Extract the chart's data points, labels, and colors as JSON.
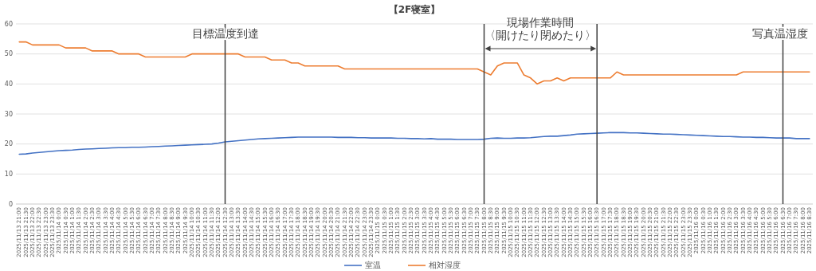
{
  "chart_data": {
    "type": "line",
    "title": "【2F寝室】",
    "categories": [
      "2025/11/13 21:00",
      "2025/11/13 21:30",
      "2025/11/13 22:00",
      "2025/11/13 22:30",
      "2025/11/13 23:00",
      "2025/11/13 23:30",
      "2025/11/14 0:00",
      "2025/11/14 0:30",
      "2025/11/14 1:00",
      "2025/11/14 1:30",
      "2025/11/14 2:00",
      "2025/11/14 2:30",
      "2025/11/14 3:00",
      "2025/11/14 3:30",
      "2025/11/14 4:00",
      "2025/11/14 4:30",
      "2025/11/14 5:00",
      "2025/11/14 5:30",
      "2025/11/14 6:00",
      "2025/11/14 6:30",
      "2025/11/14 7:00",
      "2025/11/14 7:30",
      "2025/11/14 8:00",
      "2025/11/14 8:30",
      "2025/11/14 9:00",
      "2025/11/14 9:30",
      "2025/11/14 10:00",
      "2025/11/14 10:30",
      "2025/11/14 11:00",
      "2025/11/14 11:30",
      "2025/11/14 12:00",
      "2025/11/14 12:30",
      "2025/11/14 13:00",
      "2025/11/14 13:30",
      "2025/11/14 14:00",
      "2025/11/14 14:30",
      "2025/11/14 15:00",
      "2025/11/14 15:30",
      "2025/11/14 16:00",
      "2025/11/14 16:30",
      "2025/11/14 17:00",
      "2025/11/14 17:30",
      "2025/11/14 18:00",
      "2025/11/14 18:30",
      "2025/11/14 19:00",
      "2025/11/14 19:30",
      "2025/11/14 20:00",
      "2025/11/14 20:30",
      "2025/11/14 21:00",
      "2025/11/14 21:30",
      "2025/11/14 22:00",
      "2025/11/14 22:30",
      "2025/11/14 23:00",
      "2025/11/14 23:30",
      "2025/11/15 0:00",
      "2025/11/15 0:30",
      "2025/11/15 1:00",
      "2025/11/15 1:30",
      "2025/11/15 2:00",
      "2025/11/15 2:30",
      "2025/11/15 3:00",
      "2025/11/15 3:30",
      "2025/11/15 4:00",
      "2025/11/15 4:30",
      "2025/11/15 5:00",
      "2025/11/15 5:30",
      "2025/11/15 6:00",
      "2025/11/15 6:30",
      "2025/11/15 7:00",
      "2025/11/15 7:30",
      "2025/11/15 8:00",
      "2025/11/15 8:30",
      "2025/11/15 9:00",
      "2025/11/15 9:30",
      "2025/11/15 10:00",
      "2025/11/15 10:30",
      "2025/11/15 11:00",
      "2025/11/15 11:30",
      "2025/11/15 12:00",
      "2025/11/15 12:30",
      "2025/11/15 13:00",
      "2025/11/15 13:30",
      "2025/11/15 14:00",
      "2025/11/15 14:30",
      "2025/11/15 15:00",
      "2025/11/15 15:30",
      "2025/11/15 16:00",
      "2025/11/15 16:30",
      "2025/11/15 17:00",
      "2025/11/15 17:30",
      "2025/11/15 18:00",
      "2025/11/15 18:30",
      "2025/11/15 19:00",
      "2025/11/15 19:30",
      "2025/11/15 20:00",
      "2025/11/15 20:30",
      "2025/11/15 21:00",
      "2025/11/15 21:30",
      "2025/11/15 22:00",
      "2025/11/15 22:30",
      "2025/11/15 23:00",
      "2025/11/15 23:30",
      "2025/11/16 0:00",
      "2025/11/16 0:30",
      "2025/11/16 1:00",
      "2025/11/16 1:30",
      "2025/11/16 2:00",
      "2025/11/16 2:30",
      "2025/11/16 3:00",
      "2025/11/16 3:30",
      "2025/11/16 4:00",
      "2025/11/16 4:30",
      "2025/11/16 5:00",
      "2025/11/16 5:30",
      "2025/11/16 6:00",
      "2025/11/16 6:30",
      "2025/11/16 7:00",
      "2025/11/16 7:30",
      "2025/11/16 8:00",
      "2025/11/16 8:30"
    ],
    "series": [
      {
        "name": "室温",
        "color": "#4472c4",
        "values": [
          16.6,
          16.7,
          17.0,
          17.2,
          17.4,
          17.6,
          17.8,
          17.9,
          18.0,
          18.2,
          18.3,
          18.4,
          18.5,
          18.6,
          18.7,
          18.8,
          18.8,
          18.9,
          18.9,
          19.0,
          19.1,
          19.2,
          19.3,
          19.4,
          19.5,
          19.6,
          19.7,
          19.8,
          19.9,
          20.0,
          20.3,
          20.7,
          20.9,
          21.1,
          21.3,
          21.5,
          21.7,
          21.8,
          21.9,
          22.0,
          22.1,
          22.2,
          22.3,
          22.3,
          22.3,
          22.3,
          22.3,
          22.3,
          22.2,
          22.2,
          22.2,
          22.1,
          22.1,
          22.0,
          22.0,
          22.0,
          22.0,
          21.9,
          21.9,
          21.8,
          21.8,
          21.7,
          21.8,
          21.6,
          21.6,
          21.6,
          21.5,
          21.5,
          21.5,
          21.5,
          21.6,
          21.9,
          22.0,
          21.9,
          21.9,
          22.0,
          22.0,
          22.1,
          22.3,
          22.5,
          22.6,
          22.6,
          22.8,
          23.0,
          23.3,
          23.4,
          23.5,
          23.6,
          23.7,
          23.8,
          23.8,
          23.8,
          23.7,
          23.7,
          23.6,
          23.5,
          23.4,
          23.3,
          23.3,
          23.2,
          23.1,
          23.0,
          22.9,
          22.8,
          22.7,
          22.6,
          22.5,
          22.5,
          22.4,
          22.3,
          22.3,
          22.2,
          22.2,
          22.1,
          22.0,
          22.0,
          22.0,
          21.8,
          21.8,
          21.8
        ]
      },
      {
        "name": "相対湿度",
        "color": "#ed7d31",
        "values": [
          54,
          54,
          53,
          53,
          53,
          53,
          53,
          52,
          52,
          52,
          52,
          51,
          51,
          51,
          51,
          50,
          50,
          50,
          50,
          49,
          49,
          49,
          49,
          49,
          49,
          49,
          50,
          50,
          50,
          50,
          50,
          50,
          50,
          50,
          49,
          49,
          49,
          49,
          48,
          48,
          48,
          47,
          47,
          46,
          46,
          46,
          46,
          46,
          46,
          45,
          45,
          45,
          45,
          45,
          45,
          45,
          45,
          45,
          45,
          45,
          45,
          45,
          45,
          45,
          45,
          45,
          45,
          45,
          45,
          45,
          44,
          43,
          46,
          47,
          47,
          47,
          43,
          42,
          40,
          41,
          41,
          42,
          41,
          42,
          42,
          42,
          42,
          42,
          42,
          42,
          44,
          43,
          43,
          43,
          43,
          43,
          43,
          43,
          43,
          43,
          43,
          43,
          43,
          43,
          43,
          43,
          43,
          43,
          43,
          44,
          44,
          44,
          44,
          44,
          44,
          44,
          44,
          44,
          44,
          44
        ]
      }
    ],
    "ylim": [
      0,
      60
    ],
    "yticks": [
      0,
      10,
      20,
      30,
      40,
      50,
      60
    ],
    "grid": "y",
    "legend": "bottom",
    "marker": "none",
    "line_style": "solid",
    "ref_lines": [
      {
        "axis": "x",
        "value": "2025/11/14 12:30",
        "label": "目標温度到達",
        "color": "#404040"
      },
      {
        "axis": "x",
        "value": "2025/11/15 8:00",
        "label": null,
        "color": "#404040"
      },
      {
        "axis": "x",
        "value": "2025/11/15 16:30",
        "label": null,
        "color": "#404040"
      },
      {
        "axis": "x",
        "value": "2025/11/16 6:30",
        "label": "写真温湿度",
        "color": "#404040"
      }
    ],
    "annotations": [
      "現場作業時間",
      "〈開けたり閉めたり〉"
    ]
  }
}
